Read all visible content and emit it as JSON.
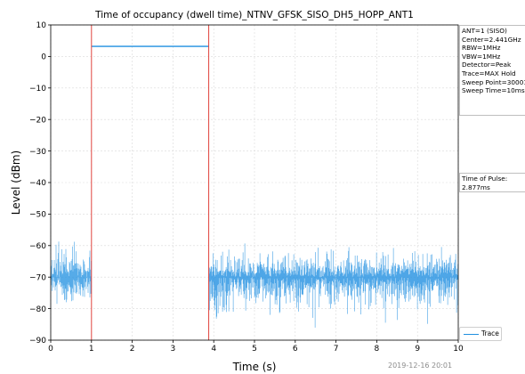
{
  "chart_data": {
    "type": "line",
    "title": "Time of occupancy (dwell time)_NTNV_GFSK_SISO_DH5_HOPP_ANT1",
    "xlabel": "Time (s)",
    "ylabel": "Level (dBm)",
    "xlim": [
      0,
      10
    ],
    "ylim": [
      -90,
      10
    ],
    "xticks": [
      0,
      1,
      2,
      3,
      4,
      5,
      6,
      7,
      8,
      9,
      10
    ],
    "yticks": [
      10,
      0,
      -10,
      -20,
      -30,
      -40,
      -50,
      -60,
      -70,
      -80,
      -90
    ],
    "grid": true,
    "legend_position": "bottom-right",
    "series": [
      {
        "name": "Trace",
        "color": "#1f8fe0",
        "segments": [
          {
            "x_start": 0,
            "x_end": 1.0,
            "kind": "noise",
            "center": -70,
            "low": -85,
            "high": -56
          },
          {
            "x_start": 1.0,
            "x_end": 3.877,
            "kind": "pulse",
            "level": 3.2
          },
          {
            "x_start": 3.877,
            "x_end": 10,
            "kind": "noise",
            "center": -70,
            "low": -90,
            "high": -56
          }
        ]
      }
    ],
    "markers": [
      {
        "x": 1.0,
        "color": "#e0443e"
      },
      {
        "x": 3.877,
        "color": "#e0443e"
      }
    ],
    "pulse_level": 3.2,
    "settings": [
      "ANT=1 (SISO)",
      "Center=2.441GHz",
      "RBW=1MHz",
      "VBW=1MHz",
      "Detector=Peak",
      "Trace=MAX Hold",
      "Sweep Point=30001",
      "Sweep Time=10ms"
    ],
    "pulse_label": "Time of Pulse:",
    "pulse_value": "2.877ms",
    "timestamp": "2019-12-16 20:01"
  },
  "colors": {
    "trace": "#1f8fe0",
    "marker": "#e0443e",
    "grid": "#d9d9d9"
  }
}
